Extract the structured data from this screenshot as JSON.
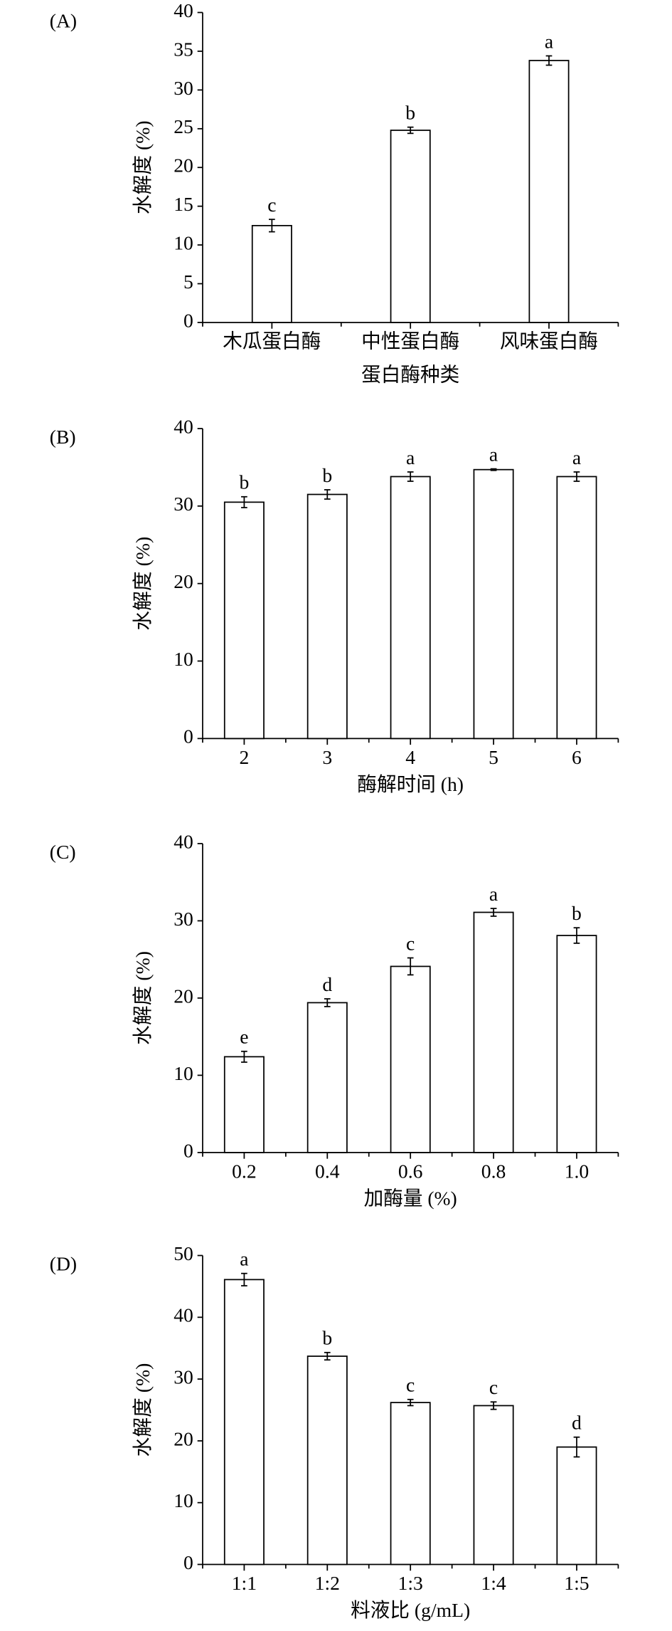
{
  "chart_data": [
    {
      "type": "bar",
      "panel": "(A)",
      "ylabel": "水解度 (%)",
      "xlabel": "蛋白酶种类",
      "categories": [
        "木瓜蛋白酶",
        "中性蛋白酶",
        "风味蛋白酶"
      ],
      "values": [
        12.5,
        24.8,
        33.8
      ],
      "errors": [
        0.8,
        0.4,
        0.6
      ],
      "letters": [
        "c",
        "b",
        "a"
      ],
      "color": "#ffffff",
      "ylim": [
        0,
        40
      ],
      "yticks": [
        0,
        5,
        10,
        15,
        20,
        25,
        30,
        35,
        40
      ]
    },
    {
      "type": "bar",
      "panel": "(B)",
      "ylabel": "水解度 (%)",
      "xlabel": "酶解时间 (h)",
      "categories": [
        "2",
        "3",
        "4",
        "5",
        "6"
      ],
      "values": [
        30.5,
        31.5,
        33.8,
        34.7,
        33.8
      ],
      "errors": [
        0.7,
        0.6,
        0.6,
        0.1,
        0.6
      ],
      "letters": [
        "b",
        "b",
        "a",
        "a",
        "a"
      ],
      "color": "#ffffff",
      "ylim": [
        0,
        40
      ],
      "yticks": [
        0,
        10,
        20,
        30,
        40
      ]
    },
    {
      "type": "bar",
      "panel": "(C)",
      "ylabel": "水解度 (%)",
      "xlabel": "加酶量 (%)",
      "categories": [
        "0.2",
        "0.4",
        "0.6",
        "0.8",
        "1.0"
      ],
      "values": [
        12.4,
        19.4,
        24.1,
        31.1,
        28.1
      ],
      "errors": [
        0.7,
        0.5,
        1.1,
        0.5,
        1.0
      ],
      "letters": [
        "e",
        "d",
        "c",
        "a",
        "b"
      ],
      "color": "#ffffff",
      "ylim": [
        0,
        40
      ],
      "yticks": [
        0,
        10,
        20,
        30,
        40
      ]
    },
    {
      "type": "bar",
      "panel": "(D)",
      "ylabel": "水解度 (%)",
      "xlabel": "料液比 (g/mL)",
      "categories": [
        "1:1",
        "1:2",
        "1:3",
        "1:4",
        "1:5"
      ],
      "values": [
        46.1,
        33.7,
        26.2,
        25.7,
        19.0
      ],
      "errors": [
        1.0,
        0.6,
        0.5,
        0.6,
        1.6
      ],
      "letters": [
        "a",
        "b",
        "c",
        "c",
        "d"
      ],
      "color": "#ffffff",
      "ylim": [
        0,
        50
      ],
      "yticks": [
        0,
        10,
        20,
        30,
        40,
        50
      ]
    }
  ]
}
